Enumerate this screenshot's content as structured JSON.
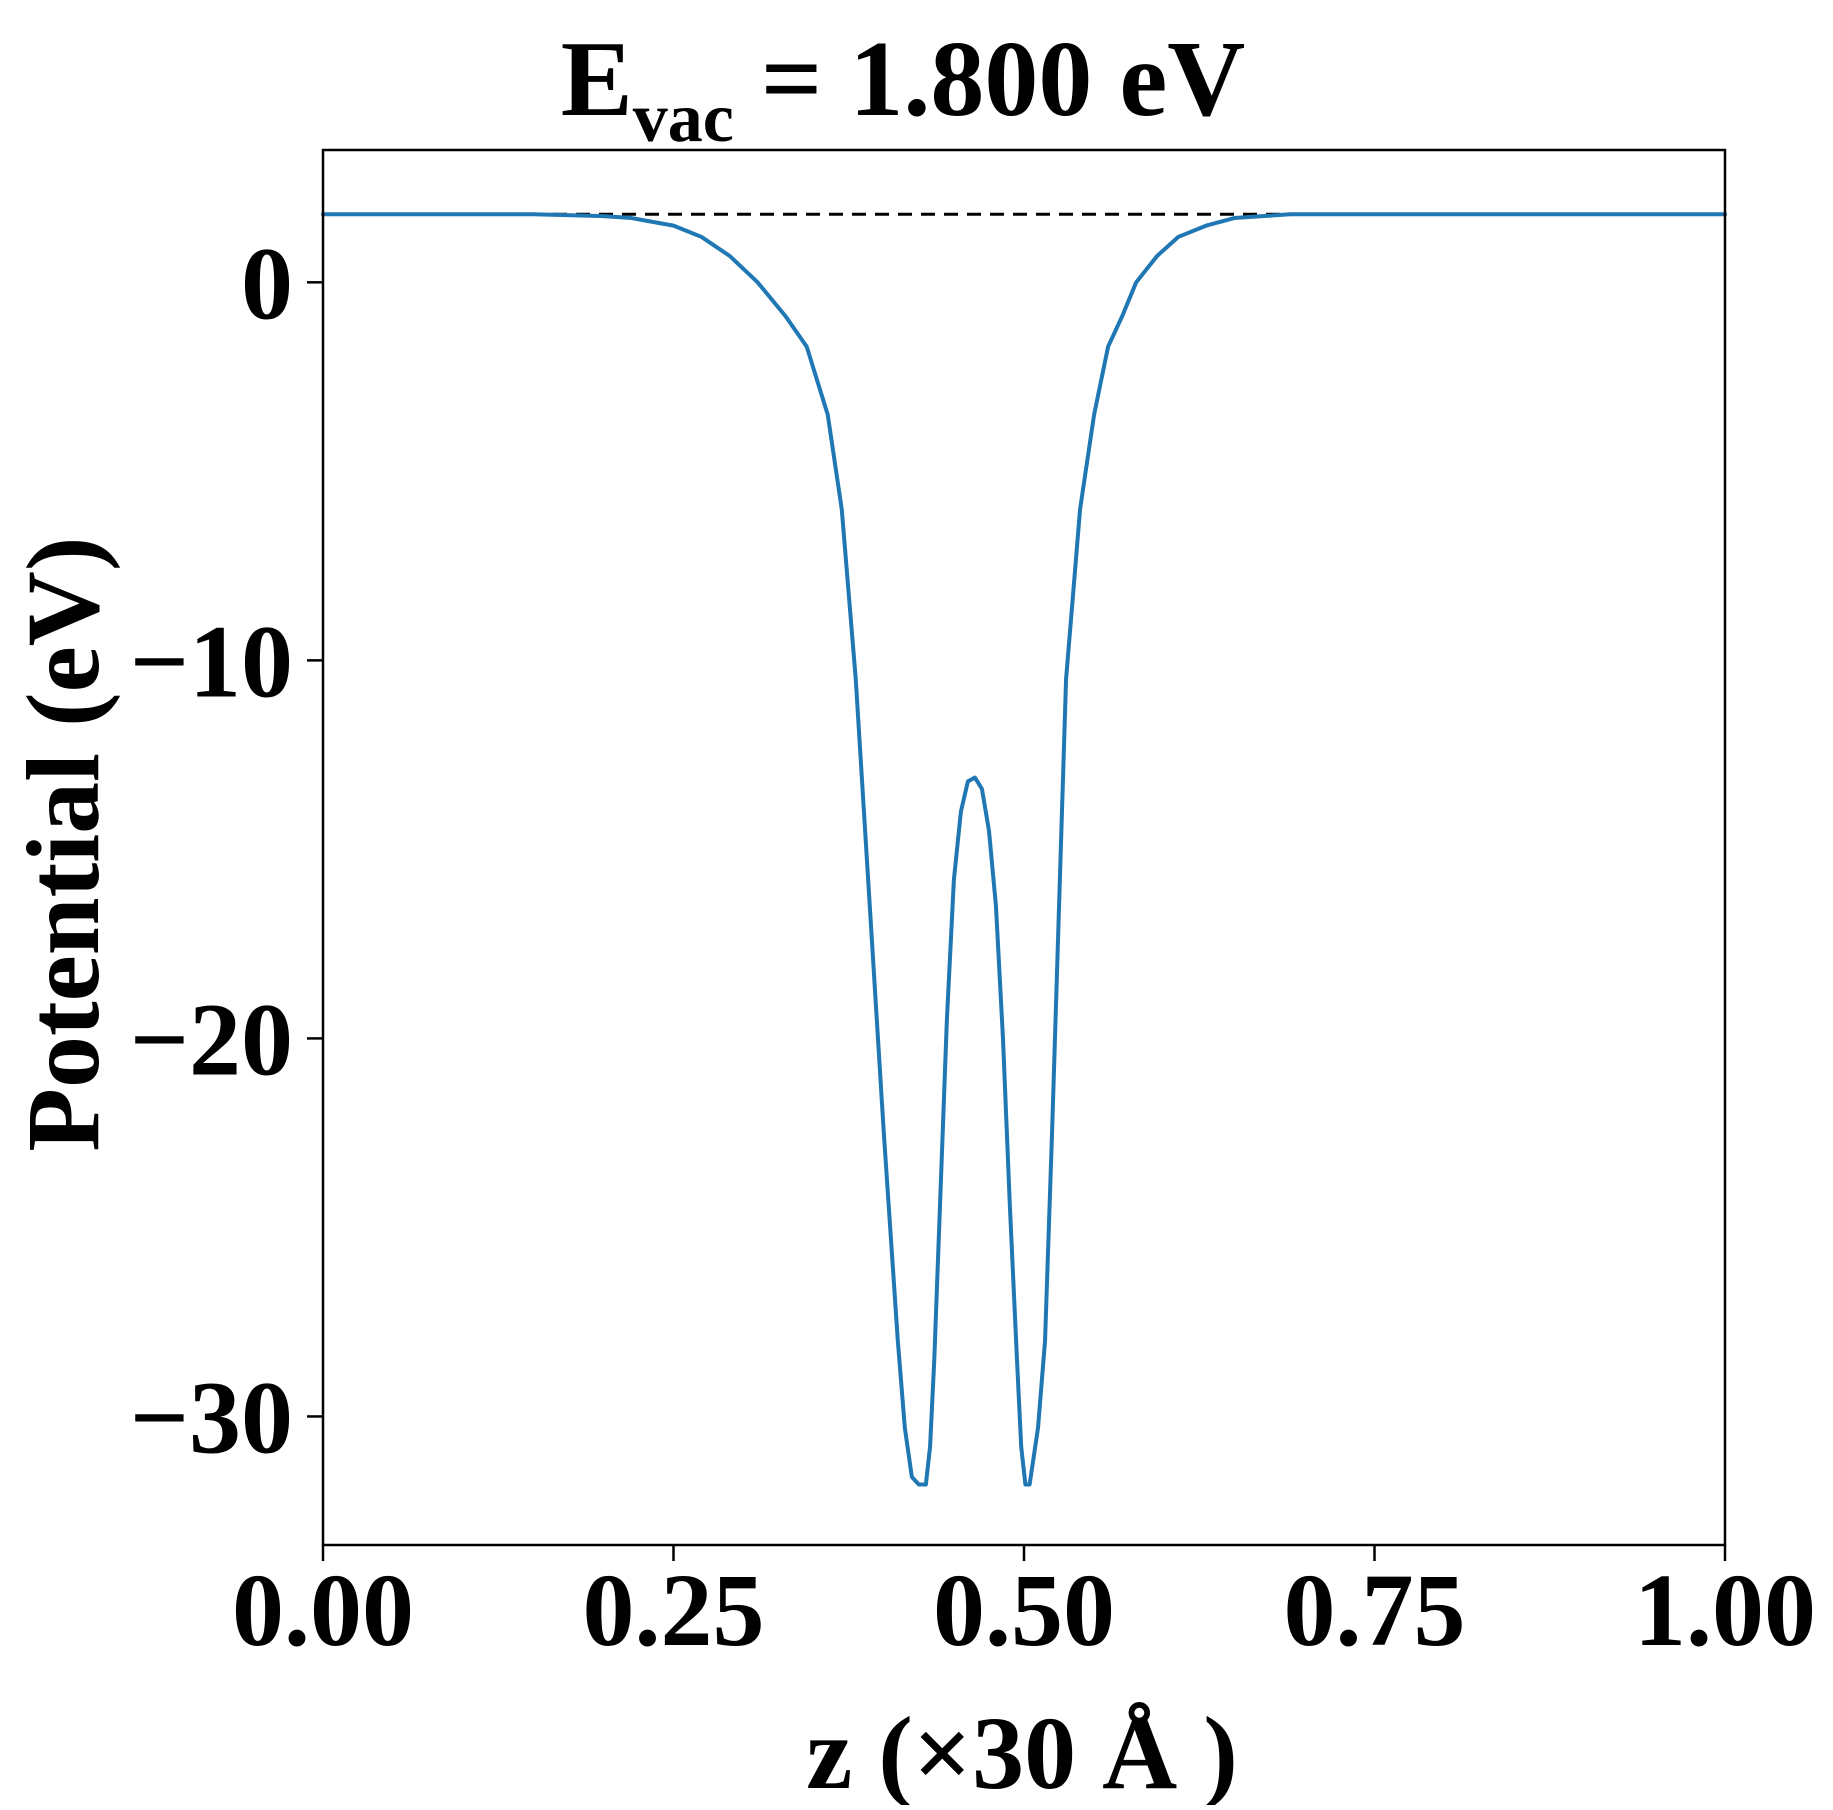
{
  "chart_data": {
    "type": "line",
    "title": {
      "main": "E",
      "subscript": "vac",
      "suffix": " = 1.800 eV"
    },
    "xlabel": "z (×30 Å )",
    "ylabel": "Potential (eV)",
    "xlim": [
      0.0,
      1.0
    ],
    "ylim": [
      -33.4,
      3.5
    ],
    "x_ticks": [
      {
        "value": 0.0,
        "label": "0.00"
      },
      {
        "value": 0.25,
        "label": "0.25"
      },
      {
        "value": 0.5,
        "label": "0.50"
      },
      {
        "value": 0.75,
        "label": "0.75"
      },
      {
        "value": 1.0,
        "label": "1.00"
      }
    ],
    "y_ticks": [
      {
        "value": 0,
        "label": "0"
      },
      {
        "value": -10,
        "label": "−10"
      },
      {
        "value": -20,
        "label": "−20"
      },
      {
        "value": -30,
        "label": "−30"
      }
    ],
    "grid": false,
    "vacuum_level": {
      "value": 1.8,
      "style": "dashed",
      "color": "#000000"
    },
    "series": [
      {
        "color": "#1f77b4",
        "x": [
          0.0,
          0.05,
          0.1,
          0.15,
          0.2,
          0.22,
          0.25,
          0.27,
          0.29,
          0.31,
          0.33,
          0.345,
          0.36,
          0.37,
          0.38,
          0.39,
          0.4,
          0.41,
          0.415,
          0.42,
          0.425,
          0.43,
          0.433,
          0.436,
          0.44,
          0.445,
          0.45,
          0.455,
          0.46,
          0.465,
          0.47,
          0.475,
          0.48,
          0.485,
          0.49,
          0.495,
          0.498,
          0.501,
          0.504,
          0.51,
          0.515,
          0.52,
          0.525,
          0.53,
          0.54,
          0.55,
          0.56,
          0.57,
          0.58,
          0.595,
          0.61,
          0.63,
          0.65,
          0.67,
          0.69,
          0.72,
          0.75,
          0.8,
          0.85,
          0.9,
          0.95,
          1.0
        ],
        "y": [
          1.8,
          1.8,
          1.8,
          1.8,
          1.75,
          1.7,
          1.5,
          1.2,
          0.7,
          0.0,
          -0.9,
          -1.7,
          -3.5,
          -6.0,
          -10.5,
          -16.5,
          -22.5,
          -28.0,
          -30.3,
          -31.6,
          -31.8,
          -31.8,
          -30.8,
          -28.5,
          -24.5,
          -19.5,
          -15.8,
          -14.0,
          -13.2,
          -13.1,
          -13.4,
          -14.5,
          -16.5,
          -20.0,
          -24.5,
          -28.5,
          -30.8,
          -31.8,
          -31.8,
          -30.3,
          -28.0,
          -22.5,
          -16.5,
          -10.5,
          -6.0,
          -3.5,
          -1.7,
          -0.9,
          0.0,
          0.7,
          1.2,
          1.5,
          1.7,
          1.75,
          1.8,
          1.8,
          1.8,
          1.8,
          1.8,
          1.8,
          1.8,
          1.8
        ]
      }
    ]
  }
}
